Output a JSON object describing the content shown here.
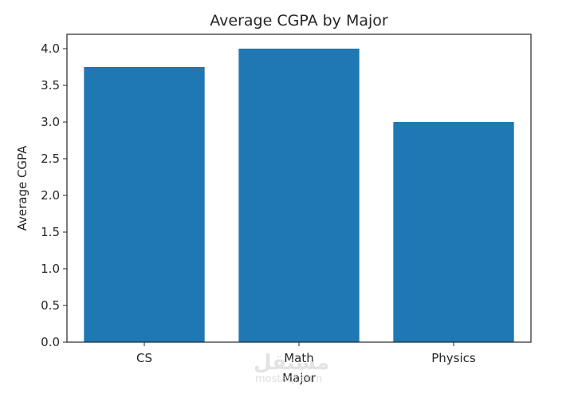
{
  "chart_data": {
    "type": "bar",
    "title": "Average CGPA by Major",
    "xlabel": "Major",
    "ylabel": "Average CGPA",
    "categories": [
      "CS",
      "Math",
      "Physics"
    ],
    "values": [
      3.75,
      4.0,
      3.0
    ],
    "ylim": [
      0,
      4.2
    ],
    "yticks": [
      "0.0",
      "0.5",
      "1.0",
      "1.5",
      "2.0",
      "2.5",
      "3.0",
      "3.5",
      "4.0"
    ],
    "grid": false,
    "legend": null,
    "bar_color": "#1f77b4"
  },
  "watermark": {
    "text": "مستقل",
    "subtext": "mostaql.com"
  }
}
